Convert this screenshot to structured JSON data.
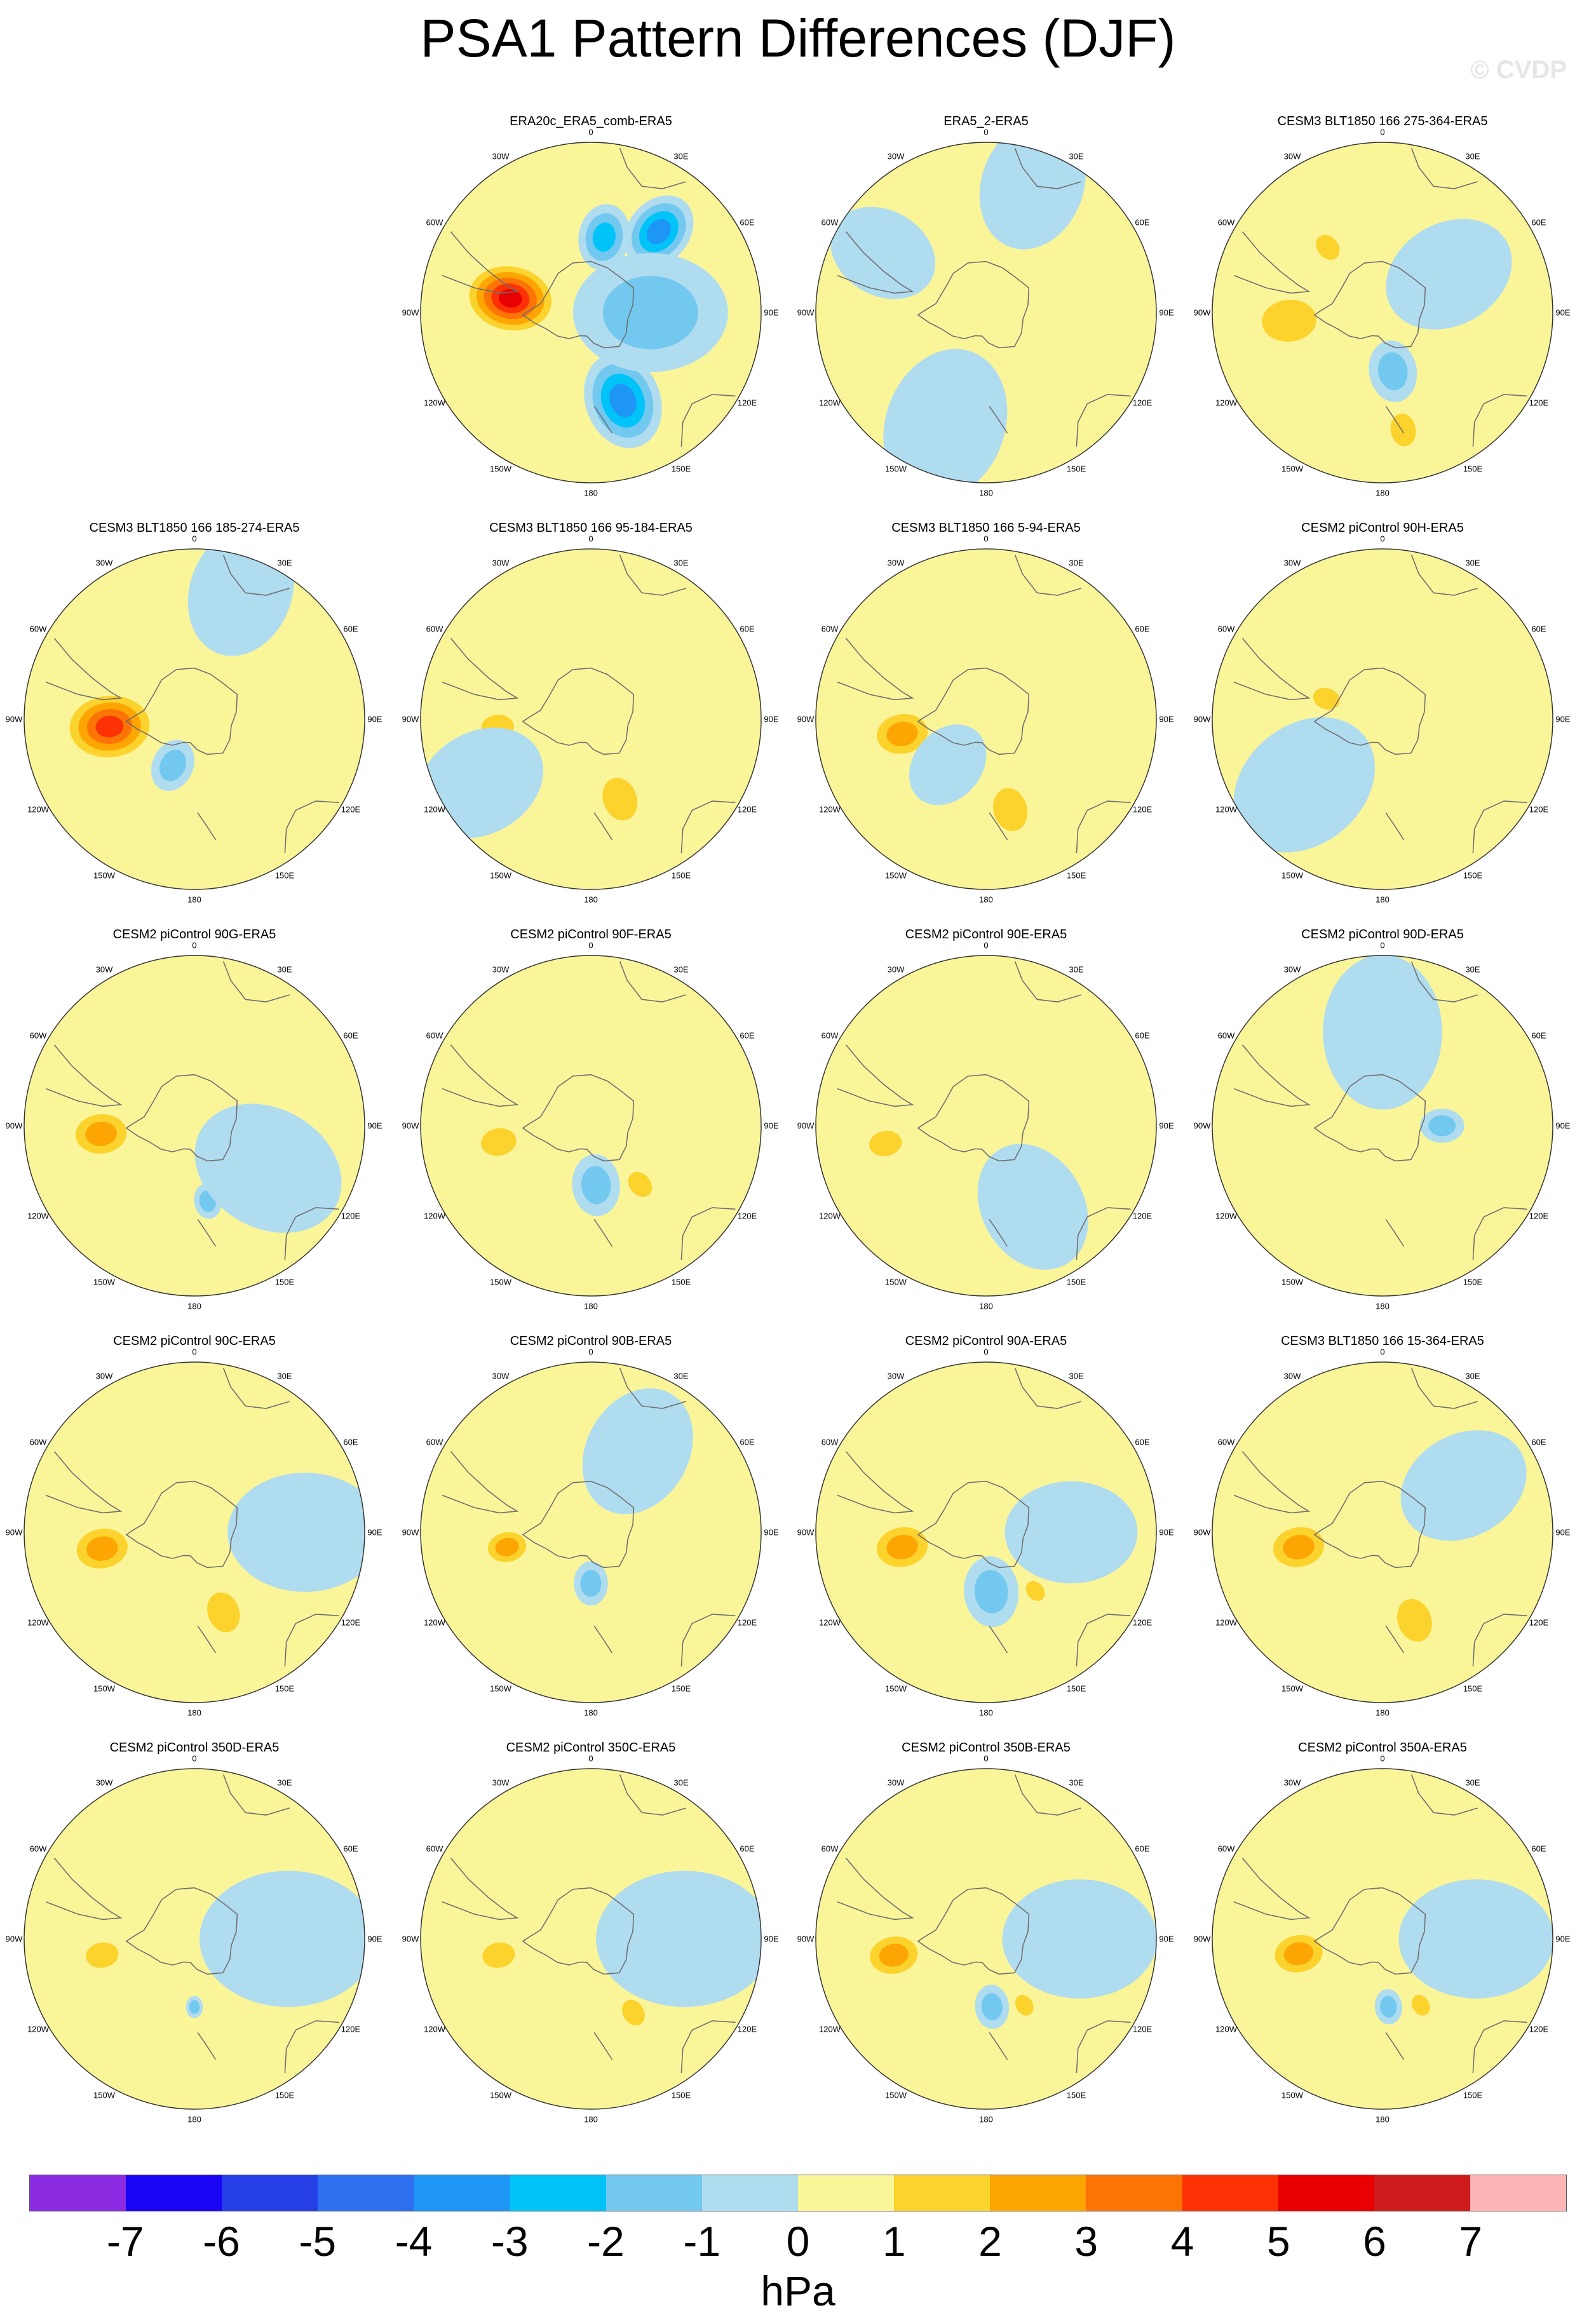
{
  "title": "PSA1 Pattern Differences (DJF)",
  "watermark": "© CVDP",
  "lon_labels": [
    "0",
    "30E",
    "60E",
    "90E",
    "120E",
    "150E",
    "180",
    "150W",
    "120W",
    "90W",
    "60W",
    "30W"
  ],
  "panels": [
    {
      "title": "ERA20c_ERA5_comb-ERA5",
      "row": 0,
      "col": 1,
      "features": [
        {
          "lon": -80,
          "r": 0.48,
          "size": 0.22,
          "value": 5.5
        },
        {
          "lon": 160,
          "r": 0.55,
          "size": 0.22,
          "value": -3.5
        },
        {
          "lon": 40,
          "r": 0.62,
          "size": 0.18,
          "value": -3.2
        },
        {
          "lon": 10,
          "r": 0.45,
          "size": 0.15,
          "value": -3.0
        },
        {
          "lon": 90,
          "r": 0.35,
          "size": 0.35,
          "value": -1.5
        }
      ]
    },
    {
      "title": "ERA5_2-ERA5",
      "row": 0,
      "col": 2,
      "features": [
        {
          "lon": -160,
          "r": 0.7,
          "size": 0.35,
          "value": -0.5
        },
        {
          "lon": 20,
          "r": 0.8,
          "size": 0.3,
          "value": -0.5
        },
        {
          "lon": -60,
          "r": 0.7,
          "size": 0.25,
          "value": -0.5
        }
      ]
    },
    {
      "title": "CESM3 BLT1850 166 275-364-ERA5",
      "row": 0,
      "col": 3,
      "features": [
        {
          "lon": -95,
          "r": 0.55,
          "size": 0.2,
          "value": 1.5
        },
        {
          "lon": -40,
          "r": 0.5,
          "size": 0.1,
          "value": 1.5
        },
        {
          "lon": 170,
          "r": 0.7,
          "size": 0.12,
          "value": 1.5
        },
        {
          "lon": 170,
          "r": 0.35,
          "size": 0.14,
          "value": -1.5
        },
        {
          "lon": 60,
          "r": 0.45,
          "size": 0.3,
          "value": -0.5
        }
      ]
    },
    {
      "title": "CESM3 BLT1850 166 185-274-ERA5",
      "row": 1,
      "col": 0,
      "features": [
        {
          "lon": -95,
          "r": 0.5,
          "size": 0.22,
          "value": 4.5
        },
        {
          "lon": -155,
          "r": 0.3,
          "size": 0.12,
          "value": -1.5
        },
        {
          "lon": 20,
          "r": 0.8,
          "size": 0.3,
          "value": -0.5
        }
      ]
    },
    {
      "title": "CESM3 BLT1850 166 95-184-ERA5",
      "row": 1,
      "col": 1,
      "features": [
        {
          "lon": -95,
          "r": 0.55,
          "size": 0.12,
          "value": 1.5
        },
        {
          "lon": 160,
          "r": 0.5,
          "size": 0.16,
          "value": 1.5
        },
        {
          "lon": -120,
          "r": 0.75,
          "size": 0.3,
          "value": -0.5
        }
      ]
    },
    {
      "title": "CESM3 BLT1850 166 5-94-ERA5",
      "row": 1,
      "col": 2,
      "features": [
        {
          "lon": -100,
          "r": 0.5,
          "size": 0.16,
          "value": 2.5
        },
        {
          "lon": 165,
          "r": 0.55,
          "size": 0.16,
          "value": 1.5
        },
        {
          "lon": -140,
          "r": 0.35,
          "size": 0.2,
          "value": -0.5
        }
      ]
    },
    {
      "title": "CESM2 piControl 90H-ERA5",
      "row": 1,
      "col": 3,
      "features": [
        {
          "lon": -70,
          "r": 0.35,
          "size": 0.1,
          "value": 1.5
        },
        {
          "lon": -130,
          "r": 0.6,
          "size": 0.35,
          "value": -0.5
        }
      ]
    },
    {
      "title": "CESM2 piControl 90G-ERA5",
      "row": 2,
      "col": 0,
      "features": [
        {
          "lon": -95,
          "r": 0.55,
          "size": 0.16,
          "value": 2.5
        },
        {
          "lon": 170,
          "r": 0.45,
          "size": 0.08,
          "value": -1.5
        },
        {
          "lon": 120,
          "r": 0.5,
          "size": 0.35,
          "value": -0.5
        }
      ]
    },
    {
      "title": "CESM2 piControl 90F-ERA5",
      "row": 2,
      "col": 1,
      "features": [
        {
          "lon": -100,
          "r": 0.55,
          "size": 0.13,
          "value": 1.5
        },
        {
          "lon": 175,
          "r": 0.35,
          "size": 0.14,
          "value": -1.5
        },
        {
          "lon": 140,
          "r": 0.45,
          "size": 0.1,
          "value": 1.5
        }
      ]
    },
    {
      "title": "CESM2 piControl 90E-ERA5",
      "row": 2,
      "col": 2,
      "features": [
        {
          "lon": -100,
          "r": 0.6,
          "size": 0.12,
          "value": 1.5
        },
        {
          "lon": 150,
          "r": 0.55,
          "size": 0.3,
          "value": -0.5
        }
      ]
    },
    {
      "title": "CESM2 piControl 90D-ERA5",
      "row": 2,
      "col": 3,
      "features": [
        {
          "lon": 90,
          "r": 0.35,
          "size": 0.1,
          "value": -1.5
        },
        {
          "lon": 0,
          "r": 0.55,
          "size": 0.35,
          "value": -0.5
        }
      ]
    },
    {
      "title": "CESM2 piControl 90C-ERA5",
      "row": 3,
      "col": 0,
      "features": [
        {
          "lon": -100,
          "r": 0.55,
          "size": 0.16,
          "value": 2.5
        },
        {
          "lon": 160,
          "r": 0.5,
          "size": 0.15,
          "value": 1.5
        },
        {
          "lon": 90,
          "r": 0.65,
          "size": 0.35,
          "value": -0.5
        }
      ]
    },
    {
      "title": "CESM2 piControl 90B-ERA5",
      "row": 3,
      "col": 1,
      "features": [
        {
          "lon": -100,
          "r": 0.5,
          "size": 0.12,
          "value": 2.5
        },
        {
          "lon": 180,
          "r": 0.3,
          "size": 0.1,
          "value": -1.5
        },
        {
          "lon": 30,
          "r": 0.55,
          "size": 0.3,
          "value": -0.5
        }
      ]
    },
    {
      "title": "CESM2 piControl 90A-ERA5",
      "row": 3,
      "col": 2,
      "features": [
        {
          "lon": -100,
          "r": 0.5,
          "size": 0.16,
          "value": 2.5
        },
        {
          "lon": 175,
          "r": 0.35,
          "size": 0.16,
          "value": -1.5
        },
        {
          "lon": 140,
          "r": 0.45,
          "size": 0.08,
          "value": 1.5
        },
        {
          "lon": 90,
          "r": 0.5,
          "size": 0.3,
          "value": -0.5
        }
      ]
    },
    {
      "title": "CESM3 BLT1850 166 15-364-ERA5",
      "row": 3,
      "col": 3,
      "features": [
        {
          "lon": -100,
          "r": 0.5,
          "size": 0.16,
          "value": 2.5
        },
        {
          "lon": 160,
          "r": 0.55,
          "size": 0.16,
          "value": 1.5
        },
        {
          "lon": 60,
          "r": 0.55,
          "size": 0.3,
          "value": -0.5
        }
      ]
    },
    {
      "title": "CESM2 piControl 350D-ERA5",
      "row": 4,
      "col": 0,
      "features": [
        {
          "lon": -100,
          "r": 0.55,
          "size": 0.12,
          "value": 1.5
        },
        {
          "lon": 180,
          "r": 0.4,
          "size": 0.05,
          "value": -1.5
        },
        {
          "lon": 90,
          "r": 0.55,
          "size": 0.4,
          "value": -0.5
        }
      ]
    },
    {
      "title": "CESM2 piControl 350C-ERA5",
      "row": 4,
      "col": 1,
      "features": [
        {
          "lon": -100,
          "r": 0.55,
          "size": 0.12,
          "value": 1.5
        },
        {
          "lon": 150,
          "r": 0.5,
          "size": 0.1,
          "value": 1.5
        },
        {
          "lon": 90,
          "r": 0.55,
          "size": 0.4,
          "value": -0.5
        }
      ]
    },
    {
      "title": "CESM2 piControl 350B-ERA5",
      "row": 4,
      "col": 2,
      "features": [
        {
          "lon": -100,
          "r": 0.55,
          "size": 0.15,
          "value": 2.5
        },
        {
          "lon": 175,
          "r": 0.4,
          "size": 0.1,
          "value": -1.5
        },
        {
          "lon": 150,
          "r": 0.45,
          "size": 0.08,
          "value": 1.5
        },
        {
          "lon": 90,
          "r": 0.55,
          "size": 0.35,
          "value": -0.5
        }
      ]
    },
    {
      "title": "CESM2 piControl 350A-ERA5",
      "row": 4,
      "col": 3,
      "features": [
        {
          "lon": -100,
          "r": 0.5,
          "size": 0.15,
          "value": 2.5
        },
        {
          "lon": 175,
          "r": 0.4,
          "size": 0.08,
          "value": -1.5
        },
        {
          "lon": 150,
          "r": 0.45,
          "size": 0.08,
          "value": 1.5
        },
        {
          "lon": 90,
          "r": 0.55,
          "size": 0.35,
          "value": -0.5
        }
      ]
    }
  ],
  "colorbar": {
    "colors": [
      "#8a2be2",
      "#1c05f5",
      "#263ee6",
      "#2e6ff0",
      "#1e96f5",
      "#00c3f8",
      "#73c8f0",
      "#b0dcf0",
      "#fbf59a",
      "#fcd22d",
      "#fca503",
      "#fc7306",
      "#fc3205",
      "#e80000",
      "#cf1b1b",
      "#fdb4b4"
    ],
    "ticks": [
      "-7",
      "-6",
      "-5",
      "-4",
      "-3",
      "-2",
      "-1",
      "0",
      "1",
      "2",
      "3",
      "4",
      "5",
      "6",
      "7"
    ],
    "levels": [
      -7,
      -6,
      -5,
      -4,
      -3,
      -2,
      -1,
      0,
      1,
      2,
      3,
      4,
      5,
      6,
      7
    ],
    "units": "hPa"
  }
}
